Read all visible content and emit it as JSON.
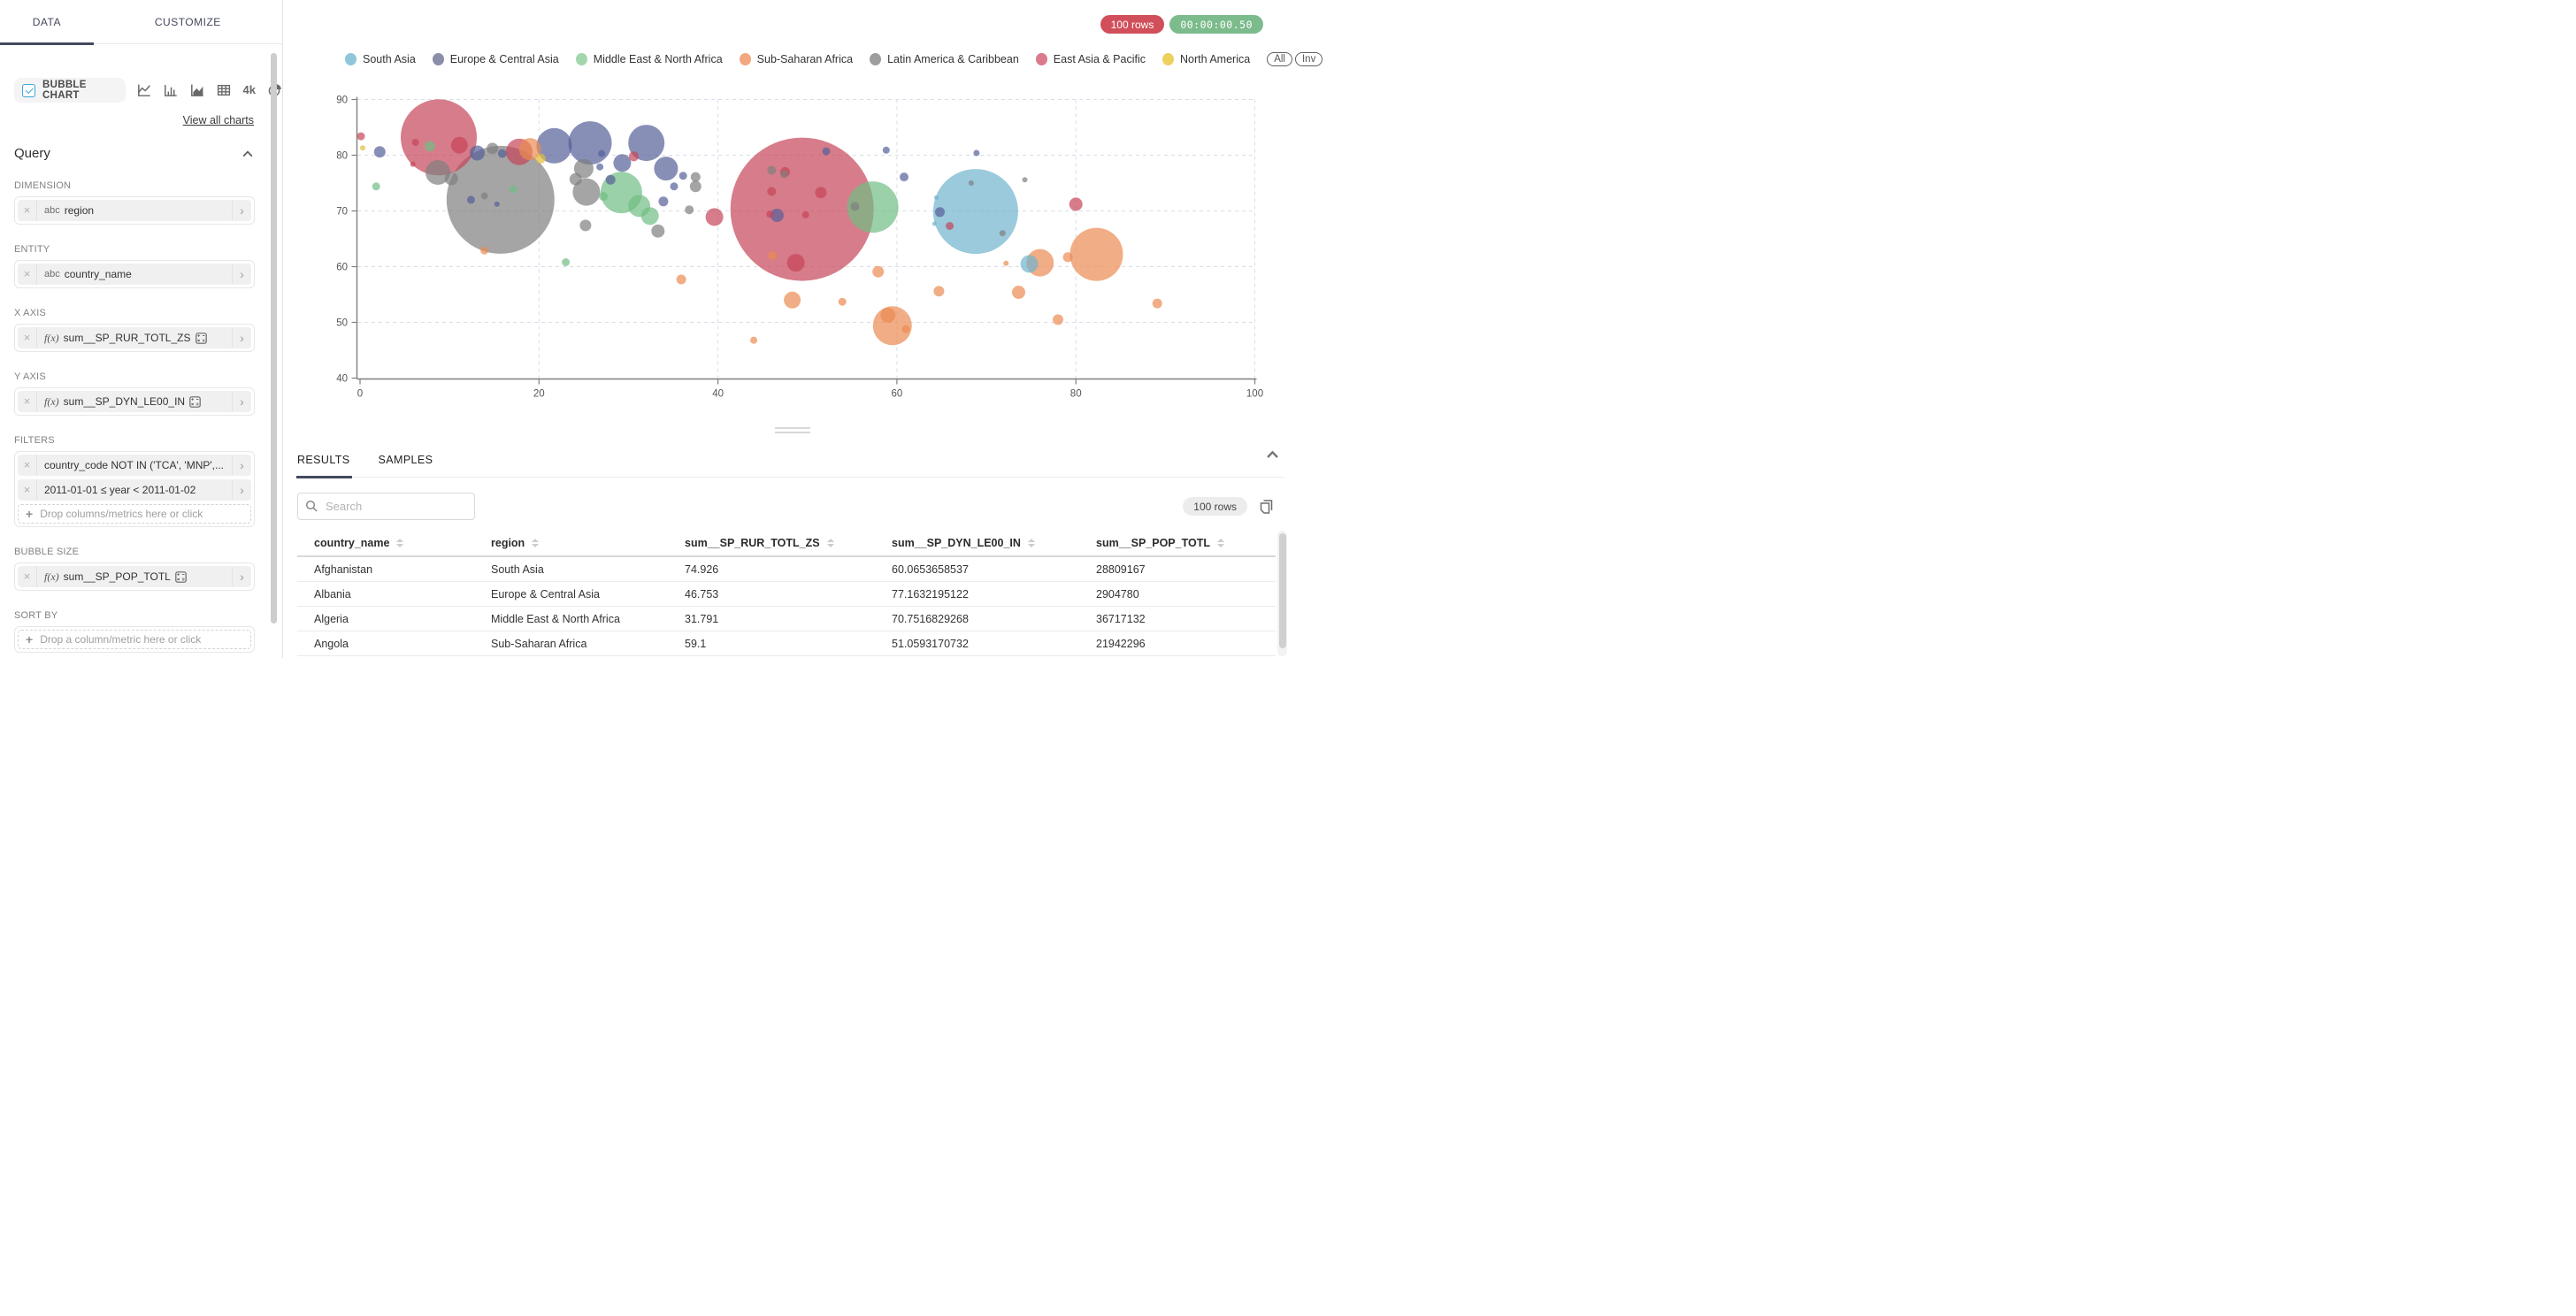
{
  "sidebar": {
    "tabs": [
      {
        "label": "DATA",
        "active": true
      },
      {
        "label": "CUSTOMIZE",
        "active": false
      }
    ],
    "chart_selector": {
      "selected_label": "BUBBLE CHART",
      "icons": [
        "line-chart-icon",
        "bar-chart-icon",
        "area-chart-icon",
        "table-chart-icon",
        "big-number-icon",
        "pie-chart-icon"
      ],
      "big_number_text": "4k",
      "view_all_label": "View all charts"
    },
    "query": {
      "title": "Query",
      "sections": [
        {
          "label": "DIMENSION",
          "chips": [
            {
              "prefix": "abc",
              "text": "region",
              "calc": false
            }
          ]
        },
        {
          "label": "ENTITY",
          "chips": [
            {
              "prefix": "abc",
              "text": "country_name",
              "calc": false
            }
          ]
        },
        {
          "label": "X AXIS",
          "chips": [
            {
              "prefix": "f(x)",
              "text": "sum__SP_RUR_TOTL_ZS",
              "calc": true
            }
          ]
        },
        {
          "label": "Y AXIS",
          "chips": [
            {
              "prefix": "f(x)",
              "text": "sum__SP_DYN_LE00_IN",
              "calc": true
            }
          ]
        },
        {
          "label": "FILTERS",
          "chips": [
            {
              "prefix": "",
              "text": "country_code NOT IN ('TCA', 'MNP',...",
              "calc": false
            },
            {
              "prefix": "",
              "text": "2011-01-01 ≤ year < 2011-01-02",
              "calc": false
            }
          ],
          "dropzone": "Drop columns/metrics here or click"
        },
        {
          "label": "BUBBLE SIZE",
          "chips": [
            {
              "prefix": "f(x)",
              "text": "sum__SP_POP_TOTL",
              "calc": true
            }
          ]
        },
        {
          "label": "SORT BY",
          "chips": [],
          "dropzone": "Drop a column/metric here or click"
        }
      ]
    }
  },
  "topbar": {
    "row_count": "100 rows",
    "timer": "00:00:00.50"
  },
  "legend": {
    "items": [
      {
        "label": "South Asia",
        "color": "#8fc7da"
      },
      {
        "label": "Europe & Central Asia",
        "color": "#8a8ea9"
      },
      {
        "label": "Middle East & North Africa",
        "color": "#a3d6ad"
      },
      {
        "label": "Sub-Saharan Africa",
        "color": "#f2a77e"
      },
      {
        "label": "Latin America & Caribbean",
        "color": "#9d9d9d"
      },
      {
        "label": "East Asia & Pacific",
        "color": "#d97b8c"
      },
      {
        "label": "North America",
        "color": "#eed05f"
      }
    ],
    "all_label": "All",
    "inv_label": "Inv"
  },
  "chart_data": {
    "type": "bubble",
    "x_metric": "sum__SP_RUR_TOTL_ZS",
    "y_metric": "sum__SP_DYN_LE00_IN",
    "size_metric": "sum__SP_POP_TOTL",
    "xlim": [
      0,
      100
    ],
    "ylim": [
      40,
      90
    ],
    "x_ticks": [
      0,
      20,
      40,
      60,
      80,
      100
    ],
    "y_ticks": [
      40,
      50,
      60,
      70,
      80,
      90
    ],
    "grid": "dashed",
    "legend_position": "top",
    "series": [
      {
        "name": "South Asia",
        "color": "#6fb3cd",
        "points": [
          [
            68.8,
            69.9,
            48
          ],
          [
            74.8,
            60.5,
            10
          ],
          [
            64.2,
            67.7,
            2.5
          ],
          [
            64.4,
            72.4,
            2.5
          ]
        ]
      },
      {
        "name": "Europe & Central Asia",
        "color": "#566099",
        "points": [
          [
            2.2,
            80.6,
            6.5
          ],
          [
            13.1,
            80.4,
            8.5
          ],
          [
            15.9,
            80.3,
            5
          ],
          [
            21.7,
            81.7,
            20
          ],
          [
            25.7,
            82.2,
            24.5
          ],
          [
            32,
            82.2,
            20.5
          ],
          [
            29.3,
            78.6,
            10
          ],
          [
            34.2,
            77.6,
            13.5
          ],
          [
            27,
            80.3,
            4
          ],
          [
            26.8,
            77.9,
            4
          ],
          [
            12.4,
            72,
            4.5
          ],
          [
            15.3,
            71.2,
            3
          ],
          [
            28,
            75.6,
            5.5
          ],
          [
            33.9,
            71.7,
            5.5
          ],
          [
            35.1,
            74.4,
            4.5
          ],
          [
            36.1,
            76.3,
            4.5
          ],
          [
            46.6,
            69.2,
            7.5
          ],
          [
            52.1,
            80.7,
            4.5
          ],
          [
            58.8,
            80.9,
            4
          ],
          [
            60.8,
            76.1,
            5
          ],
          [
            68.9,
            80.4,
            3.5
          ],
          [
            64.8,
            69.8,
            5.5
          ]
        ]
      },
      {
        "name": "Middle East & North Africa",
        "color": "#70bd83",
        "points": [
          [
            1.8,
            74.4,
            4.5
          ],
          [
            7.8,
            81.6,
            6
          ],
          [
            17.1,
            73.9,
            4.5
          ],
          [
            29.2,
            73.3,
            23.5
          ],
          [
            31.2,
            70.9,
            12.5
          ],
          [
            32.4,
            69.1,
            10
          ],
          [
            27.2,
            72.6,
            5
          ],
          [
            57.3,
            70.7,
            29
          ],
          [
            23,
            60.8,
            4.5
          ]
        ]
      },
      {
        "name": "Sub-Saharan Africa",
        "color": "#eb8a51",
        "points": [
          [
            19,
            81.1,
            12.5
          ],
          [
            13.9,
            62.9,
            4.5
          ],
          [
            35.9,
            57.7,
            5.5
          ],
          [
            44,
            46.8,
            4
          ],
          [
            46.1,
            62,
            5
          ],
          [
            48.3,
            54,
            9.5
          ],
          [
            53.9,
            53.7,
            4.5
          ],
          [
            57.9,
            59.1,
            6.5
          ],
          [
            59.5,
            49.4,
            22
          ],
          [
            59,
            51.3,
            8.5
          ],
          [
            61,
            48.8,
            4.5
          ],
          [
            64.7,
            55.6,
            6
          ],
          [
            72.2,
            60.6,
            3
          ],
          [
            73.6,
            55.4,
            7.5
          ],
          [
            76,
            60.7,
            15.5
          ],
          [
            79.1,
            61.7,
            5.5
          ],
          [
            82.3,
            62.2,
            30
          ],
          [
            78,
            50.5,
            6
          ],
          [
            89.1,
            53.4,
            5.5
          ]
        ]
      },
      {
        "name": "Latin America & Caribbean",
        "color": "#7f7f7f",
        "points": [
          [
            8.7,
            76.9,
            14
          ],
          [
            10.2,
            75.8,
            7.5
          ],
          [
            15.7,
            72,
            61
          ],
          [
            14.8,
            81.2,
            6.5
          ],
          [
            13.9,
            72.7,
            4
          ],
          [
            24.1,
            75.7,
            7
          ],
          [
            25,
            77.6,
            11
          ],
          [
            25.3,
            73.4,
            15.5
          ],
          [
            25.2,
            67.4,
            6.5
          ],
          [
            33.3,
            66.4,
            7.5
          ],
          [
            36.8,
            70.2,
            5
          ],
          [
            37.5,
            76.1,
            5.5
          ],
          [
            37.5,
            74.4,
            6.5
          ],
          [
            46,
            77.3,
            5
          ],
          [
            47.4,
            76.6,
            4.5
          ],
          [
            55.3,
            70.8,
            5
          ],
          [
            68.3,
            75,
            3
          ],
          [
            74.3,
            75.6,
            3
          ],
          [
            71.8,
            66,
            3.5
          ]
        ]
      },
      {
        "name": "East Asia & Pacific",
        "color": "#c64458",
        "points": [
          [
            0.1,
            83.4,
            4.5
          ],
          [
            8.8,
            83.2,
            43
          ],
          [
            11.1,
            81.8,
            9.5
          ],
          [
            6.2,
            82.3,
            4
          ],
          [
            5.9,
            78.4,
            3
          ],
          [
            17.8,
            80.6,
            15
          ],
          [
            30.6,
            79.8,
            5.5
          ],
          [
            39.6,
            68.9,
            10
          ],
          [
            49.4,
            70.3,
            81
          ],
          [
            47.5,
            77,
            5.5
          ],
          [
            46,
            73.5,
            5
          ],
          [
            51.5,
            73.3,
            6.5
          ],
          [
            48.7,
            60.7,
            10
          ],
          [
            45.8,
            69.4,
            4
          ],
          [
            49.8,
            69.3,
            4
          ],
          [
            80,
            71.2,
            7.5
          ],
          [
            65.9,
            67.3,
            4.5
          ]
        ]
      },
      {
        "name": "North America",
        "color": "#e3bd38",
        "points": [
          [
            0.3,
            81.3,
            3
          ],
          [
            20.2,
            79.4,
            5.5
          ]
        ]
      }
    ]
  },
  "results": {
    "tabs": [
      {
        "label": "RESULTS",
        "active": true
      },
      {
        "label": "SAMPLES",
        "active": false
      }
    ],
    "search_placeholder": "Search",
    "row_count": "100 rows",
    "table": {
      "columns": [
        "country_name",
        "region",
        "sum__SP_RUR_TOTL_ZS",
        "sum__SP_DYN_LE00_IN",
        "sum__SP_POP_TOTL"
      ],
      "rows": [
        [
          "Afghanistan",
          "South Asia",
          "74.926",
          "60.0653658537",
          "28809167"
        ],
        [
          "Albania",
          "Europe & Central Asia",
          "46.753",
          "77.1632195122",
          "2904780"
        ],
        [
          "Algeria",
          "Middle East & North Africa",
          "31.791",
          "70.7516829268",
          "36717132"
        ],
        [
          "Angola",
          "Sub-Saharan Africa",
          "59.1",
          "51.0593170732",
          "21942296"
        ]
      ]
    }
  }
}
